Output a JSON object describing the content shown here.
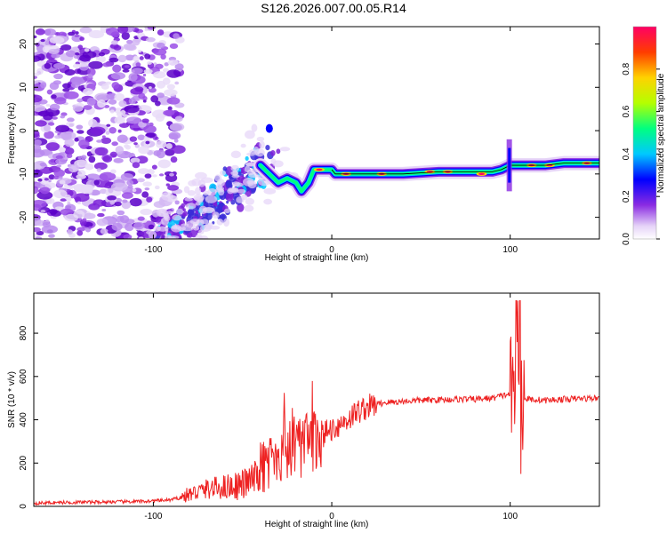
{
  "chart_data": [
    {
      "type": "heatmap",
      "title": "S126.2026.007.00.05.R14",
      "xlabel": "Height of straight line (km)",
      "ylabel": "Frequency (Hz)",
      "xlim": [
        -167,
        150
      ],
      "ylim": [
        -25,
        24
      ],
      "x_ticks": [
        -100,
        0,
        100
      ],
      "y_ticks": [
        -20,
        -10,
        0,
        10,
        20
      ],
      "colorbar": {
        "label": "Normalized spectral amplitude",
        "ticks": [
          "0.0",
          "0.2",
          "0.4",
          "0.6",
          "0.8"
        ],
        "range": [
          0,
          1
        ]
      },
      "ridge_line": {
        "x": [
          -40,
          -35,
          -30,
          -25,
          -20,
          -17,
          -13,
          -10,
          -5,
          0,
          2,
          5,
          10,
          20,
          40,
          60,
          80,
          90,
          95,
          100,
          105,
          110,
          120,
          130,
          150
        ],
        "freq": [
          -8,
          -10,
          -12,
          -11,
          -12,
          -14,
          -12,
          -9,
          -9,
          -9,
          -10,
          -10,
          -10,
          -10,
          -10,
          -9.5,
          -9.5,
          -9.5,
          -9,
          -8,
          -8,
          -8,
          -8,
          -7.5,
          -7.5
        ]
      }
    },
    {
      "type": "line",
      "xlabel": "Height of straight line (km)",
      "ylabel": "SNR (10 * v/v)",
      "xlim": [
        -167,
        150
      ],
      "ylim": [
        0,
        985
      ],
      "x_ticks": [
        -100,
        0,
        100
      ],
      "y_ticks": [
        0,
        200,
        400,
        600,
        800
      ],
      "series": [
        {
          "name": "SNR",
          "color": "#ee2222",
          "x": [
            -167,
            -150,
            -130,
            -110,
            -100,
            -90,
            -85,
            -80,
            -70,
            -60,
            -50,
            -45,
            -40,
            -35,
            -30,
            -25,
            -20,
            -15,
            -10,
            -5,
            0,
            5,
            10,
            15,
            20,
            25,
            30,
            40,
            50,
            60,
            70,
            80,
            90,
            95,
            100,
            103,
            105,
            107,
            110,
            120,
            130,
            140,
            150
          ],
          "y": [
            15,
            18,
            20,
            22,
            25,
            30,
            40,
            55,
            80,
            90,
            100,
            120,
            150,
            200,
            250,
            260,
            270,
            280,
            300,
            330,
            360,
            380,
            410,
            440,
            460,
            470,
            480,
            485,
            490,
            492,
            495,
            495,
            500,
            510,
            520,
            450,
            480,
            500,
            495,
            490,
            495,
            498,
            500
          ]
        }
      ]
    }
  ]
}
